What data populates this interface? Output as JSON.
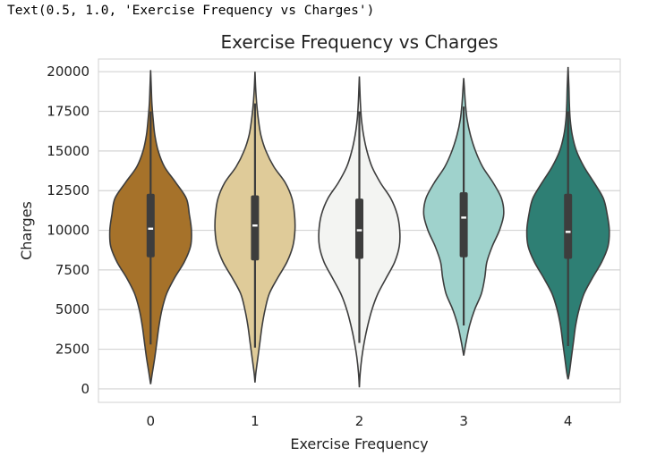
{
  "output_text": "Text(0.5, 1.0, 'Exercise Frequency vs Charges')",
  "chart_data": {
    "type": "violin",
    "title": "Exercise Frequency vs Charges",
    "xlabel": "Exercise Frequency",
    "ylabel": "Charges",
    "categories": [
      "0",
      "1",
      "2",
      "3",
      "4"
    ],
    "yticks": [
      0,
      2500,
      5000,
      7500,
      10000,
      12500,
      15000,
      17500,
      20000
    ],
    "ylim": [
      -850,
      20800
    ],
    "grid": "horizontal",
    "colors": [
      "#a6722a",
      "#dfcb99",
      "#f3f4f2",
      "#9fd2cc",
      "#2e7f74"
    ],
    "series": [
      {
        "category": "0",
        "color": "#a6722a",
        "min": 300,
        "max": 20100,
        "whisker_low": 2800,
        "whisker_high": 17500,
        "q1": 8300,
        "median": 10100,
        "q3": 12300,
        "density": [
          [
            300,
            0.0
          ],
          [
            1000,
            0.04
          ],
          [
            2000,
            0.1
          ],
          [
            3000,
            0.15
          ],
          [
            4000,
            0.2
          ],
          [
            5000,
            0.27
          ],
          [
            6000,
            0.38
          ],
          [
            7000,
            0.57
          ],
          [
            8000,
            0.8
          ],
          [
            9000,
            0.95
          ],
          [
            10000,
            0.97
          ],
          [
            11000,
            0.92
          ],
          [
            12000,
            0.85
          ],
          [
            13000,
            0.6
          ],
          [
            14000,
            0.33
          ],
          [
            15000,
            0.18
          ],
          [
            16000,
            0.1
          ],
          [
            17000,
            0.06
          ],
          [
            18000,
            0.03
          ],
          [
            19000,
            0.015
          ],
          [
            20100,
            0.0
          ]
        ]
      },
      {
        "category": "1",
        "color": "#dfcb99",
        "min": 400,
        "max": 20000,
        "whisker_low": 2600,
        "whisker_high": 18000,
        "q1": 8100,
        "median": 10300,
        "q3": 12200,
        "density": [
          [
            400,
            0.0
          ],
          [
            1000,
            0.02
          ],
          [
            2000,
            0.07
          ],
          [
            3000,
            0.12
          ],
          [
            4000,
            0.17
          ],
          [
            5000,
            0.24
          ],
          [
            6000,
            0.34
          ],
          [
            7000,
            0.54
          ],
          [
            8000,
            0.76
          ],
          [
            9000,
            0.9
          ],
          [
            10000,
            0.95
          ],
          [
            11000,
            0.94
          ],
          [
            12000,
            0.88
          ],
          [
            13000,
            0.72
          ],
          [
            14000,
            0.45
          ],
          [
            15000,
            0.26
          ],
          [
            16000,
            0.14
          ],
          [
            17000,
            0.08
          ],
          [
            18000,
            0.04
          ],
          [
            19000,
            0.015
          ],
          [
            20000,
            0.0
          ]
        ]
      },
      {
        "category": "2",
        "color": "#f3f4f2",
        "min": 100,
        "max": 19700,
        "whisker_low": 2900,
        "whisker_high": 17500,
        "q1": 8200,
        "median": 10000,
        "q3": 12000,
        "density": [
          [
            100,
            0.0
          ],
          [
            1000,
            0.02
          ],
          [
            2000,
            0.06
          ],
          [
            3000,
            0.12
          ],
          [
            4000,
            0.2
          ],
          [
            5000,
            0.3
          ],
          [
            6000,
            0.44
          ],
          [
            7000,
            0.64
          ],
          [
            8000,
            0.84
          ],
          [
            9000,
            0.95
          ],
          [
            10000,
            0.96
          ],
          [
            11000,
            0.9
          ],
          [
            12000,
            0.75
          ],
          [
            13000,
            0.5
          ],
          [
            14000,
            0.3
          ],
          [
            15000,
            0.18
          ],
          [
            16000,
            0.1
          ],
          [
            17000,
            0.05
          ],
          [
            18000,
            0.025
          ],
          [
            19000,
            0.01
          ],
          [
            19700,
            0.0
          ]
        ]
      },
      {
        "category": "3",
        "color": "#9fd2cc",
        "min": 2100,
        "max": 19600,
        "whisker_low": 4000,
        "whisker_high": 17800,
        "q1": 8300,
        "median": 10800,
        "q3": 12400,
        "density": [
          [
            2100,
            0.0
          ],
          [
            3000,
            0.06
          ],
          [
            4000,
            0.14
          ],
          [
            5000,
            0.26
          ],
          [
            6000,
            0.42
          ],
          [
            7000,
            0.5
          ],
          [
            8000,
            0.55
          ],
          [
            9000,
            0.68
          ],
          [
            10000,
            0.85
          ],
          [
            11000,
            0.95
          ],
          [
            12000,
            0.9
          ],
          [
            13000,
            0.7
          ],
          [
            14000,
            0.45
          ],
          [
            15000,
            0.28
          ],
          [
            16000,
            0.16
          ],
          [
            17000,
            0.08
          ],
          [
            18000,
            0.04
          ],
          [
            19000,
            0.015
          ],
          [
            19600,
            0.0
          ]
        ]
      },
      {
        "category": "4",
        "color": "#2e7f74",
        "min": 600,
        "max": 20300,
        "whisker_low": 2700,
        "whisker_high": 17500,
        "q1": 8200,
        "median": 9900,
        "q3": 12300,
        "density": [
          [
            600,
            0.0
          ],
          [
            1000,
            0.03
          ],
          [
            2000,
            0.08
          ],
          [
            3000,
            0.13
          ],
          [
            4000,
            0.18
          ],
          [
            5000,
            0.26
          ],
          [
            6000,
            0.38
          ],
          [
            7000,
            0.58
          ],
          [
            8000,
            0.8
          ],
          [
            9000,
            0.95
          ],
          [
            10000,
            0.98
          ],
          [
            11000,
            0.93
          ],
          [
            12000,
            0.84
          ],
          [
            13000,
            0.62
          ],
          [
            14000,
            0.38
          ],
          [
            15000,
            0.2
          ],
          [
            16000,
            0.1
          ],
          [
            17000,
            0.05
          ],
          [
            18000,
            0.03
          ],
          [
            19000,
            0.02
          ],
          [
            20300,
            0.0
          ]
        ]
      }
    ]
  }
}
